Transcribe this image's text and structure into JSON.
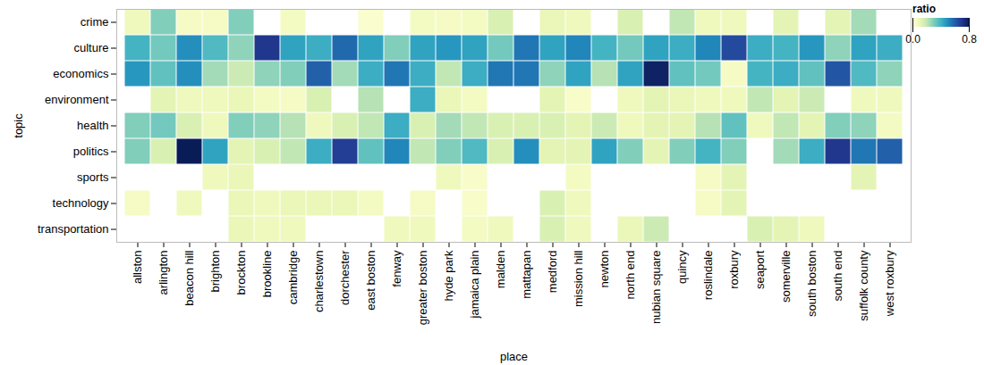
{
  "chart_data": {
    "type": "heatmap",
    "x_label": "place",
    "y_label": "topic",
    "x": [
      "allston",
      "arlington",
      "beacon hill",
      "brighton",
      "brockton",
      "brookline",
      "cambridge",
      "charlestown",
      "dorchester",
      "east boston",
      "fenway",
      "greater boston",
      "hyde park",
      "jamaica plain",
      "malden",
      "mattapan",
      "medford",
      "mission hill",
      "newton",
      "north end",
      "nubian square",
      "quincy",
      "roslindale",
      "roxbury",
      "seaport",
      "somerville",
      "south boston",
      "south end",
      "suffolk county",
      "west roxbury"
    ],
    "y": [
      "crime",
      "culture",
      "economics",
      "environment",
      "health",
      "politics",
      "sports",
      "technology",
      "transportation"
    ],
    "values": [
      [
        0.08,
        0.3,
        0.05,
        0.05,
        0.3,
        null,
        0.06,
        null,
        null,
        0.03,
        null,
        0.06,
        0.05,
        0.06,
        0.15,
        null,
        0.1,
        0.08,
        null,
        0.15,
        null,
        0.2,
        0.08,
        0.08,
        null,
        0.12,
        null,
        0.12,
        0.25,
        null
      ],
      [
        0.4,
        0.32,
        0.5,
        0.38,
        0.28,
        0.7,
        0.45,
        0.42,
        0.58,
        0.45,
        0.3,
        0.45,
        0.48,
        0.45,
        0.32,
        0.55,
        0.45,
        0.52,
        0.4,
        0.32,
        0.45,
        0.42,
        0.52,
        0.65,
        0.42,
        0.4,
        0.48,
        0.28,
        0.45,
        0.42
      ],
      [
        0.48,
        0.35,
        0.5,
        0.25,
        0.18,
        0.28,
        0.3,
        0.6,
        0.25,
        0.42,
        0.55,
        0.42,
        0.2,
        0.42,
        0.55,
        0.55,
        0.28,
        0.45,
        0.22,
        0.45,
        0.78,
        0.35,
        0.32,
        0.05,
        0.4,
        0.42,
        0.35,
        0.62,
        0.38,
        0.28
      ],
      [
        null,
        0.12,
        0.08,
        0.08,
        0.1,
        0.06,
        0.05,
        0.15,
        null,
        0.22,
        null,
        0.42,
        0.1,
        0.06,
        null,
        null,
        0.12,
        0.04,
        null,
        0.08,
        0.12,
        0.1,
        0.08,
        0.08,
        0.2,
        0.12,
        0.18,
        null,
        0.08,
        0.08
      ],
      [
        0.3,
        0.32,
        0.15,
        0.08,
        0.3,
        0.28,
        0.22,
        0.08,
        0.15,
        0.2,
        0.42,
        0.15,
        0.25,
        0.2,
        0.15,
        0.15,
        0.15,
        0.12,
        0.18,
        0.08,
        0.12,
        0.12,
        0.22,
        0.35,
        0.08,
        0.2,
        0.12,
        0.3,
        0.28,
        0.06
      ],
      [
        0.3,
        0.15,
        0.8,
        0.45,
        0.12,
        0.15,
        0.2,
        0.42,
        0.68,
        0.35,
        0.52,
        0.2,
        0.3,
        0.38,
        0.15,
        0.5,
        0.12,
        0.12,
        0.45,
        0.3,
        0.12,
        0.3,
        0.4,
        0.3,
        null,
        0.25,
        0.42,
        0.7,
        0.55,
        0.6
      ],
      [
        null,
        null,
        null,
        0.08,
        0.1,
        null,
        null,
        null,
        null,
        null,
        null,
        null,
        0.08,
        0.04,
        null,
        null,
        null,
        0.06,
        null,
        null,
        null,
        null,
        0.05,
        0.12,
        null,
        null,
        null,
        null,
        0.12,
        null
      ],
      [
        0.05,
        null,
        0.08,
        null,
        0.1,
        0.08,
        0.1,
        0.1,
        0.1,
        0.06,
        null,
        0.05,
        null,
        0.04,
        null,
        null,
        0.15,
        0.08,
        null,
        null,
        null,
        null,
        0.05,
        0.12,
        null,
        null,
        null,
        null,
        null,
        null
      ],
      [
        null,
        null,
        null,
        null,
        0.1,
        0.08,
        0.08,
        null,
        null,
        null,
        0.08,
        0.08,
        null,
        0.06,
        0.08,
        null,
        0.15,
        0.08,
        null,
        0.1,
        0.18,
        null,
        null,
        null,
        0.15,
        0.12,
        0.08,
        null,
        null,
        null
      ]
    ],
    "color": "ylgnbu",
    "color_label": "ratio",
    "color_range": [
      0,
      0.8
    ],
    "color_ticks": [
      {
        "value": 0,
        "label": "0.0"
      },
      {
        "value": 0.8,
        "label": "0.8"
      }
    ]
  }
}
